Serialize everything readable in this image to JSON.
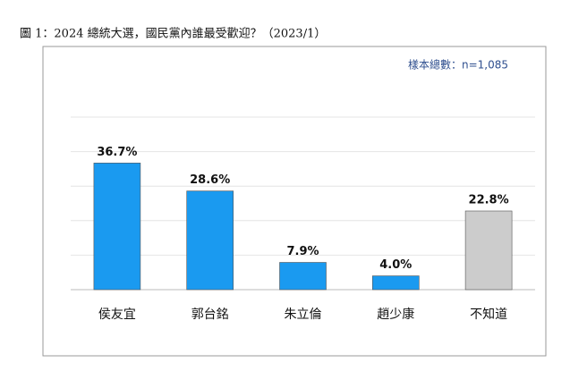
{
  "chart_data": {
    "type": "bar",
    "title": "圖 1：2024 總統大選，國民黨內誰最受歡迎？（2023/1）",
    "annotation": "樣本總數：n=1,085",
    "categories": [
      "侯友宜",
      "郭台銘",
      "朱立倫",
      "趙少康",
      "不知道"
    ],
    "values": [
      36.7,
      28.6,
      7.9,
      4.0,
      22.8
    ],
    "value_labels": [
      "36.7%",
      "28.6%",
      "7.9%",
      "4.0%",
      "22.8%"
    ],
    "colors": [
      "#1a9af0",
      "#1a9af0",
      "#1a9af0",
      "#1a9af0",
      "#cccccc"
    ],
    "ylim": [
      0,
      50
    ],
    "yticks": [
      0,
      10,
      20,
      30,
      40,
      50
    ],
    "grid": true
  }
}
